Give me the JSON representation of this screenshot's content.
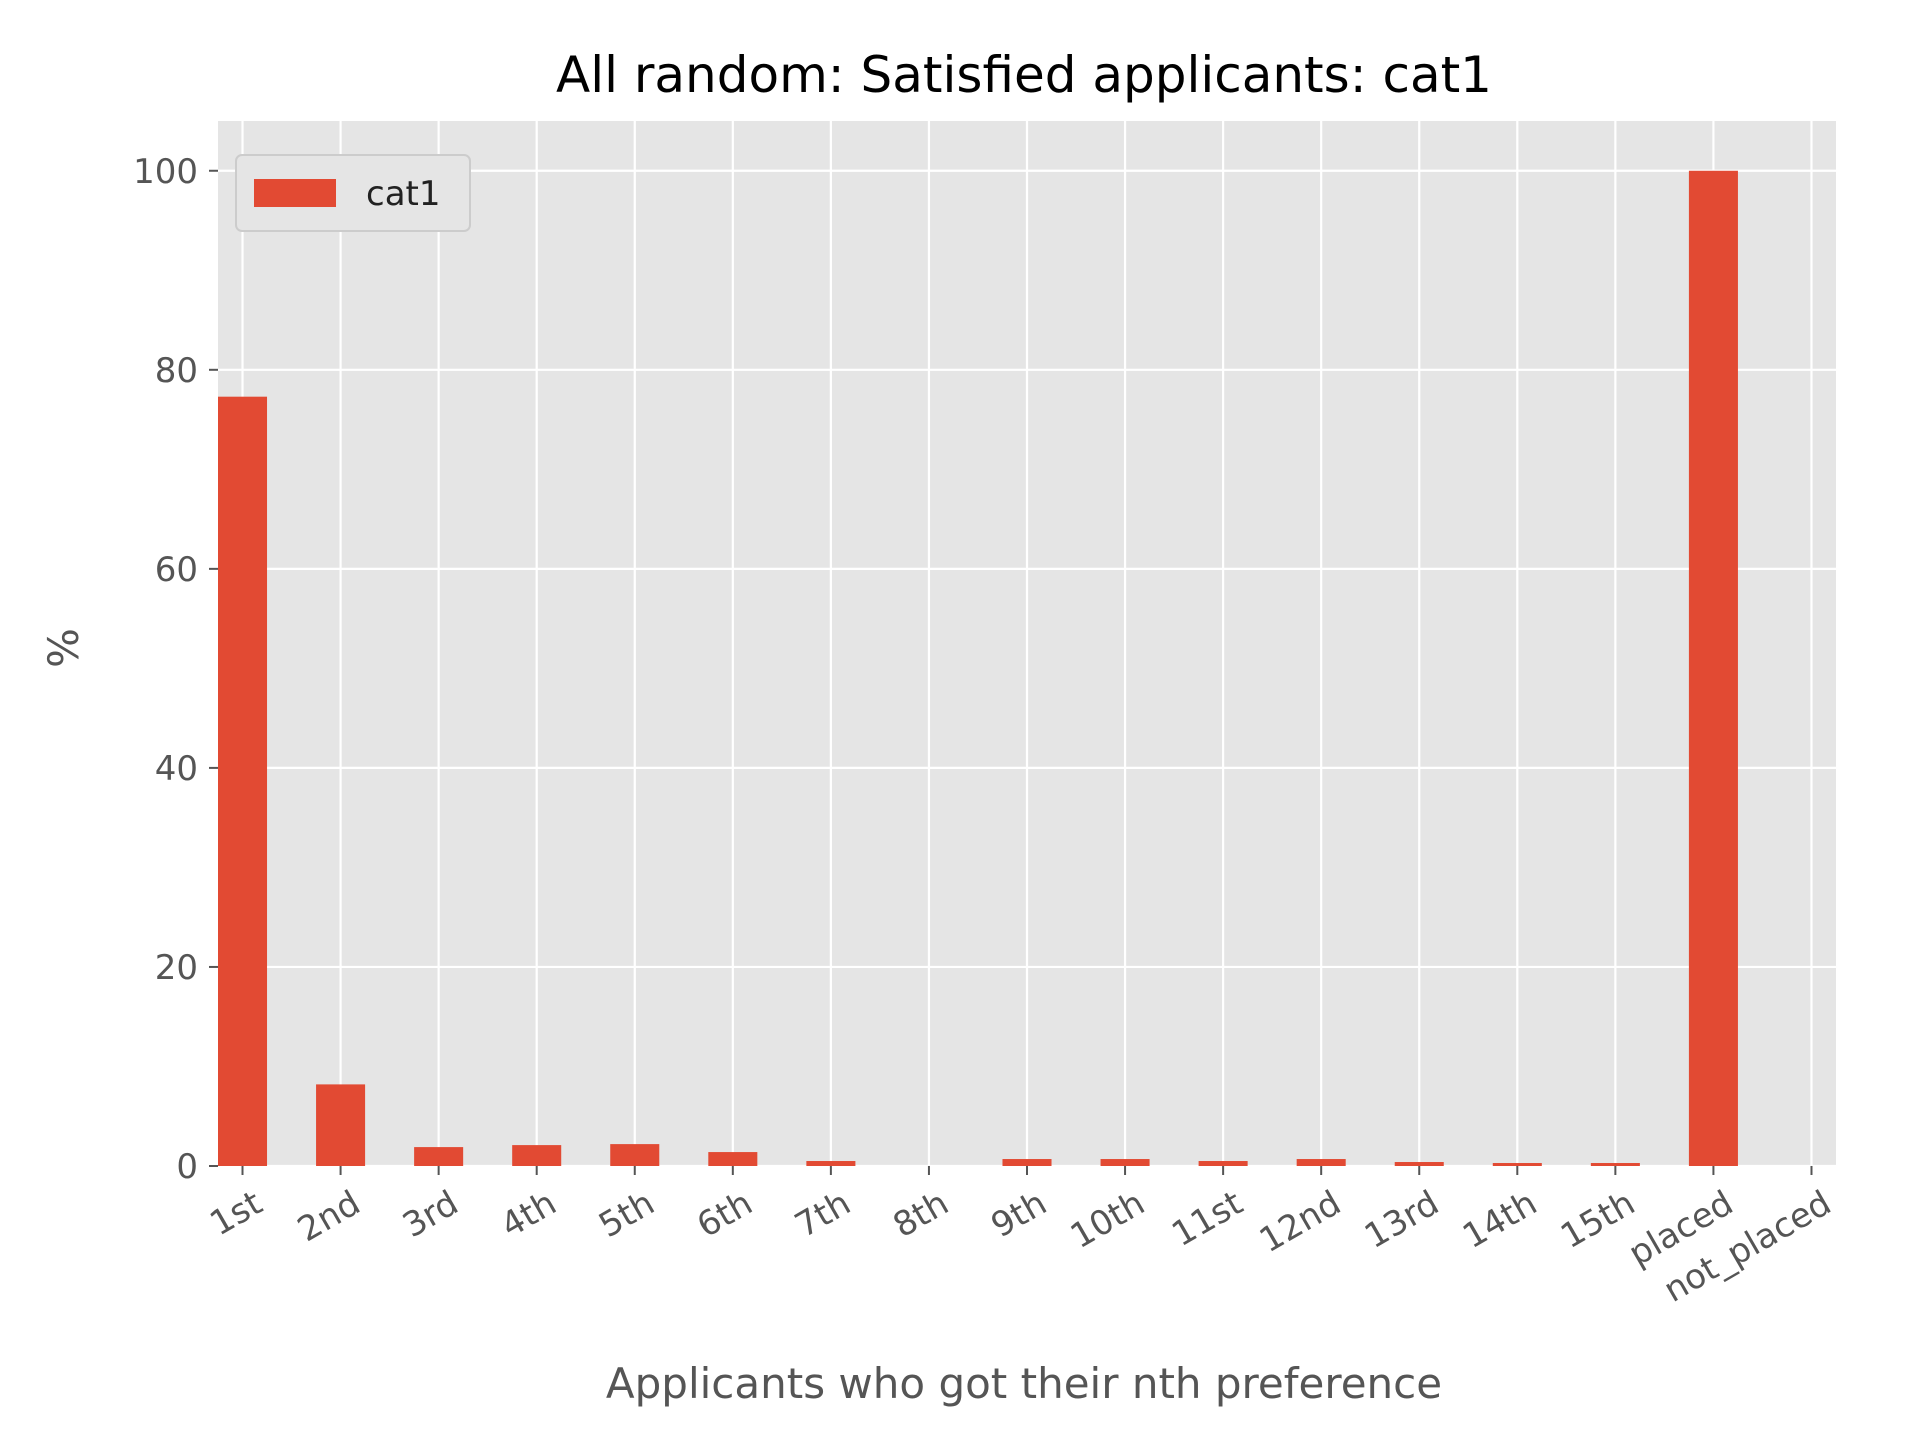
{
  "chart_data": {
    "type": "bar",
    "title": "All random: Satisfied applicants: cat1",
    "xlabel": "Applicants who got their nth preference",
    "ylabel": "%",
    "categories": [
      "1st",
      "2nd",
      "3rd",
      "4th",
      "5th",
      "6th",
      "7th",
      "8th",
      "9th",
      "10th",
      "11st",
      "12nd",
      "13rd",
      "14th",
      "15th",
      "placed",
      "not_placed"
    ],
    "series": [
      {
        "name": "cat1",
        "color": "#E24A33",
        "values": [
          77.3,
          8.2,
          1.9,
          2.1,
          2.2,
          1.4,
          0.5,
          0.0,
          0.7,
          0.7,
          0.5,
          0.7,
          0.4,
          0.3,
          0.3,
          100.0,
          0.0
        ]
      }
    ],
    "ylim": [
      0,
      105
    ],
    "yticks": [
      0,
      20,
      40,
      60,
      80,
      100
    ],
    "grid": true,
    "legend_position": "top-left",
    "style": {
      "plot_background": "#E5E5E5",
      "grid_color": "#FFFFFF",
      "tick_color": "#555555"
    }
  }
}
